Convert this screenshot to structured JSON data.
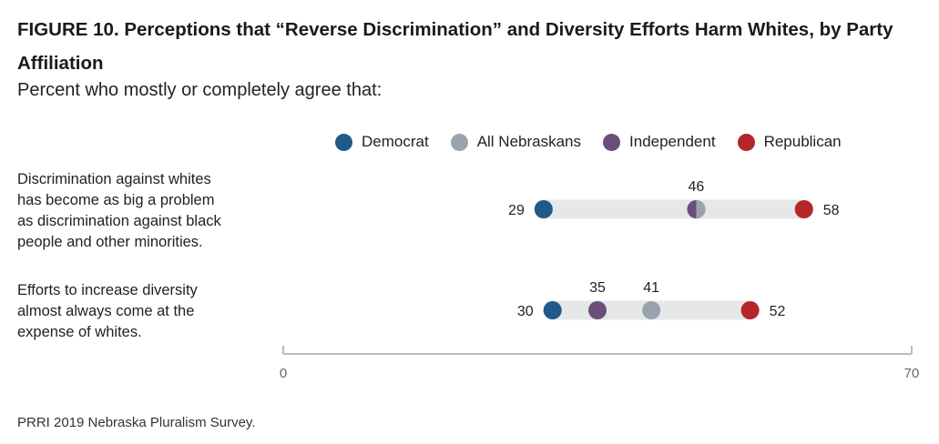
{
  "title": "FIGURE 10. Perceptions that “Reverse Discrimination” and Diversity Efforts Harm Whites, by Party Affiliation",
  "subtitle": "Percent who mostly or completely agree that:",
  "source": "PRRI 2019 Nebraska Pluralism Survey.",
  "chart_data": {
    "type": "dot",
    "xlim": [
      0,
      70
    ],
    "x_ticks": [
      "0",
      "70"
    ],
    "grid": false,
    "legend_position": "top",
    "categories": [
      "Discrimination against whites has become as big a problem as discrimination against black people and other minorities.",
      "Efforts to increase diversity almost always come at the expense of whites."
    ],
    "category_lines": [
      [
        "Discrimination against whites",
        "has become as big a problem",
        "as discrimination against black",
        "people and other minorities."
      ],
      [
        "Efforts to increase diversity",
        "almost always come at the",
        "expense of whites."
      ]
    ],
    "series": [
      {
        "name": "Democrat",
        "color": "#1f5a8a",
        "values": [
          29,
          30
        ]
      },
      {
        "name": "All Nebraskans",
        "color": "#9aa3ad",
        "values": [
          46,
          41
        ]
      },
      {
        "name": "Independent",
        "color": "#6b4f7a",
        "values": [
          46,
          35
        ]
      },
      {
        "name": "Republican",
        "color": "#b5262b",
        "values": [
          58,
          52
        ]
      }
    ],
    "data_labels": [
      [
        {
          "text": "29",
          "value": 29,
          "placement": "left"
        },
        {
          "text": "46",
          "value": 46,
          "placement": "above"
        },
        {
          "text": "58",
          "value": 58,
          "placement": "right"
        }
      ],
      [
        {
          "text": "30",
          "value": 30,
          "placement": "left"
        },
        {
          "text": "35",
          "value": 35,
          "placement": "above"
        },
        {
          "text": "41",
          "value": 41,
          "placement": "above"
        },
        {
          "text": "52",
          "value": 52,
          "placement": "right"
        }
      ]
    ],
    "bar_color": "#e6e7e8",
    "axis_color": "#bcbcbc"
  }
}
